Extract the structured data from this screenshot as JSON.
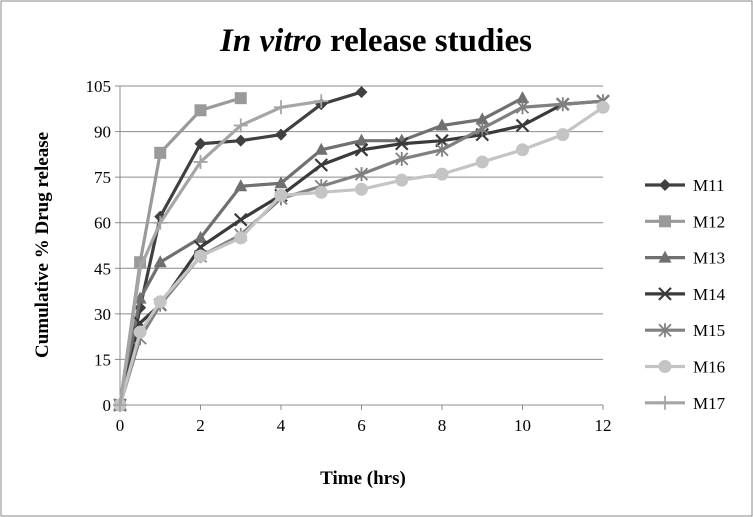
{
  "chart_data": {
    "type": "line",
    "title_italic": "In vitro",
    "title_rest": " release studies",
    "xlabel": "Time (hrs)",
    "ylabel": "Cumulative % Drug release",
    "xlim": [
      0,
      12
    ],
    "ylim": [
      0,
      105
    ],
    "xticks": [
      0,
      2,
      4,
      6,
      8,
      10,
      12
    ],
    "yticks": [
      0,
      15,
      30,
      45,
      60,
      75,
      90,
      105
    ],
    "grid": "horizontal",
    "legend_position": "right",
    "series": [
      {
        "name": "M11",
        "marker": "diamond",
        "color": "#404040",
        "points": [
          [
            0,
            0
          ],
          [
            0.5,
            32
          ],
          [
            1,
            62
          ],
          [
            2,
            86
          ],
          [
            3,
            87
          ],
          [
            4,
            89
          ],
          [
            5,
            99
          ],
          [
            6,
            103
          ]
        ]
      },
      {
        "name": "M12",
        "marker": "square",
        "color": "#9a9a9a",
        "points": [
          [
            0,
            0
          ],
          [
            0.5,
            47
          ],
          [
            1,
            83
          ],
          [
            2,
            97
          ],
          [
            3,
            101
          ]
        ]
      },
      {
        "name": "M13",
        "marker": "triangle",
        "color": "#707070",
        "points": [
          [
            0,
            0
          ],
          [
            0.5,
            35
          ],
          [
            1,
            47
          ],
          [
            2,
            55
          ],
          [
            3,
            72
          ],
          [
            4,
            73
          ],
          [
            5,
            84
          ],
          [
            6,
            87
          ],
          [
            7,
            87
          ],
          [
            8,
            92
          ],
          [
            9,
            94
          ],
          [
            10,
            101
          ]
        ]
      },
      {
        "name": "M14",
        "marker": "x",
        "color": "#3a3a3a",
        "points": [
          [
            0,
            0
          ],
          [
            0.5,
            27
          ],
          [
            1,
            33
          ],
          [
            2,
            52
          ],
          [
            3,
            61
          ],
          [
            4,
            69
          ],
          [
            5,
            79
          ],
          [
            6,
            84
          ],
          [
            7,
            86
          ],
          [
            8,
            87
          ],
          [
            9,
            89
          ],
          [
            10,
            92
          ],
          [
            11,
            99
          ],
          [
            12,
            100
          ]
        ]
      },
      {
        "name": "M15",
        "marker": "asterisk",
        "color": "#808080",
        "points": [
          [
            0,
            0
          ],
          [
            0.5,
            22
          ],
          [
            1,
            33
          ],
          [
            2,
            49
          ],
          [
            3,
            56
          ],
          [
            4,
            68
          ],
          [
            5,
            72
          ],
          [
            6,
            76
          ],
          [
            7,
            81
          ],
          [
            8,
            84
          ],
          [
            9,
            91
          ],
          [
            10,
            98
          ],
          [
            11,
            99
          ],
          [
            12,
            100
          ]
        ]
      },
      {
        "name": "M16",
        "marker": "circle",
        "color": "#c4c4c4",
        "points": [
          [
            0,
            0
          ],
          [
            0.5,
            24
          ],
          [
            1,
            34
          ],
          [
            2,
            49
          ],
          [
            3,
            55
          ],
          [
            4,
            69
          ],
          [
            5,
            70
          ],
          [
            6,
            71
          ],
          [
            7,
            74
          ],
          [
            8,
            76
          ],
          [
            9,
            80
          ],
          [
            10,
            84
          ],
          [
            11,
            89
          ],
          [
            12,
            98
          ]
        ]
      },
      {
        "name": "M17",
        "marker": "plus",
        "color": "#a5a5a5",
        "points": [
          [
            0,
            0
          ],
          [
            0.5,
            45
          ],
          [
            1,
            60
          ],
          [
            2,
            80
          ],
          [
            3,
            92
          ],
          [
            4,
            98
          ],
          [
            5,
            100
          ]
        ]
      }
    ]
  }
}
